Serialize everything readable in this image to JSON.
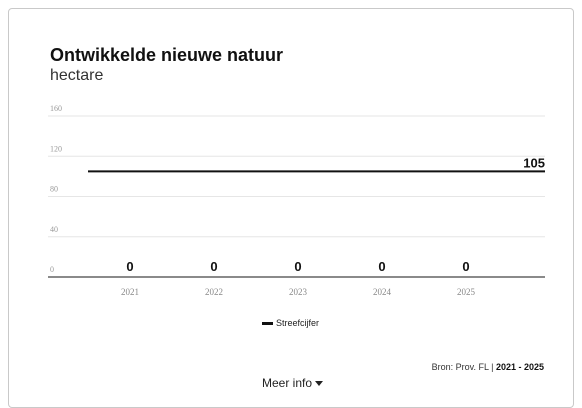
{
  "chart_data": {
    "type": "bar",
    "title": "Ontwikkelde nieuwe natuur",
    "subtitle": "hectare",
    "categories": [
      "2021",
      "2022",
      "2023",
      "2024",
      "2025"
    ],
    "series": [
      {
        "values": [
          0,
          0,
          0,
          0,
          0
        ]
      }
    ],
    "data_labels": [
      "0",
      "0",
      "0",
      "0",
      "0"
    ],
    "target": {
      "name": "Streefcijfer",
      "value": 105,
      "label": "105"
    },
    "ylim": [
      0,
      160
    ],
    "yticks": [
      0,
      40,
      80,
      120,
      160
    ],
    "ytick_labels": [
      "0",
      "40",
      "80",
      "120",
      "160"
    ],
    "grid": true,
    "legend": "bottom-center",
    "colors": {
      "target": "#111111",
      "grid": "#e6e6e6",
      "axis": "#8a8a8a"
    }
  },
  "footer": {
    "source_prefix": "Bron: Prov. FL | ",
    "source_period": "2021 - 2025",
    "more_info_label": "Meer info"
  }
}
